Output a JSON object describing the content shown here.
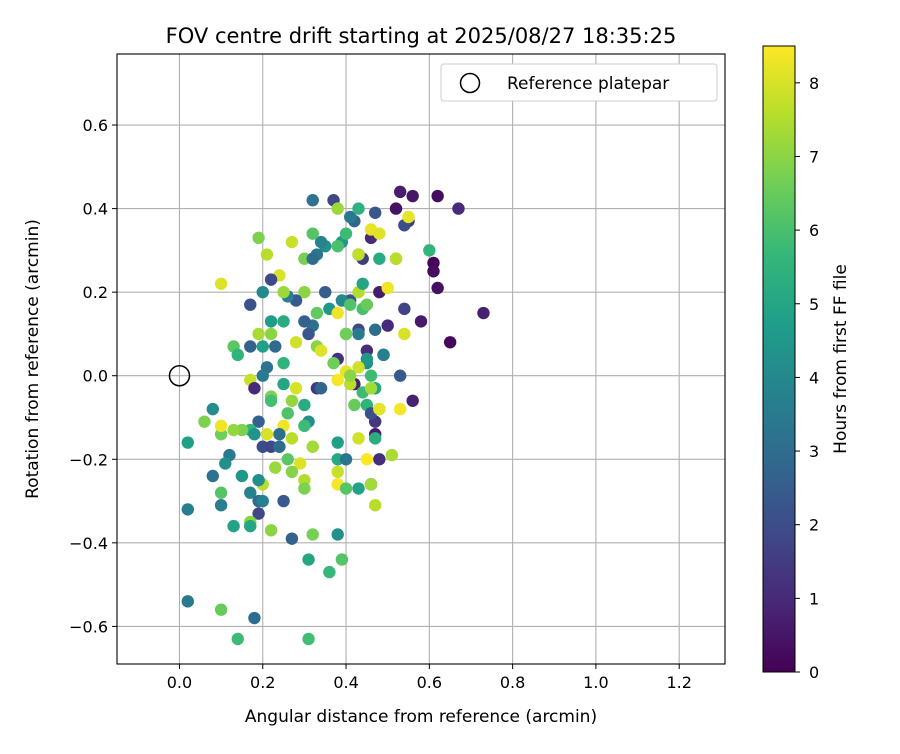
{
  "chart_data": {
    "type": "scatter",
    "title": "FOV centre drift starting at 2025/08/27 18:35:25",
    "xlabel": "Angular distance from reference (arcmin)",
    "ylabel": "Rotation from reference (arcmin)",
    "xlim": [
      -0.15,
      1.31
    ],
    "ylim": [
      -0.69,
      0.77
    ],
    "grid": true,
    "legend": {
      "position": "top-right",
      "entries": [
        "Reference platepar"
      ]
    },
    "x_ticks": [
      0.0,
      0.2,
      0.4,
      0.6,
      0.8,
      1.0,
      1.2
    ],
    "x_tick_labels": [
      "0.0",
      "0.2",
      "0.4",
      "0.6",
      "0.8",
      "1.0",
      "1.2"
    ],
    "y_ticks": [
      -0.6,
      -0.4,
      -0.2,
      0.0,
      0.2,
      0.4,
      0.6
    ],
    "y_tick_labels": [
      "−0.6",
      "−0.4",
      "−0.2",
      "0.0",
      "0.2",
      "0.4",
      "0.6"
    ],
    "colorbar": {
      "label": "Hours from first FF file",
      "colormap": "viridis",
      "range": [
        0,
        8.5
      ],
      "ticks": [
        0,
        1,
        2,
        3,
        4,
        5,
        6,
        7,
        8
      ],
      "tick_labels": [
        "0",
        "1",
        "2",
        "3",
        "4",
        "5",
        "6",
        "7",
        "8"
      ]
    },
    "reference_point": {
      "name": "Reference platepar",
      "x": 0.0,
      "y": 0.0
    },
    "points": [
      {
        "x": 0.53,
        "y": 0.44,
        "h": 0.7
      },
      {
        "x": 0.56,
        "y": 0.43,
        "h": 0.5
      },
      {
        "x": 0.62,
        "y": 0.43,
        "h": 0.3
      },
      {
        "x": 0.67,
        "y": 0.4,
        "h": 1.0
      },
      {
        "x": 0.61,
        "y": 0.27,
        "h": 0.1
      },
      {
        "x": 0.61,
        "y": 0.25,
        "h": 0.3
      },
      {
        "x": 0.62,
        "y": 0.21,
        "h": 0.4
      },
      {
        "x": 0.73,
        "y": 0.15,
        "h": 0.8
      },
      {
        "x": 0.58,
        "y": 0.13,
        "h": 0.6
      },
      {
        "x": 0.65,
        "y": 0.08,
        "h": 0.2
      },
      {
        "x": 0.56,
        "y": -0.06,
        "h": 0.8
      },
      {
        "x": 0.55,
        "y": 0.37,
        "h": 1.5
      },
      {
        "x": 0.54,
        "y": 0.36,
        "h": 2.0
      },
      {
        "x": 0.54,
        "y": 0.16,
        "h": 1.7
      },
      {
        "x": 0.52,
        "y": 0.4,
        "h": 0.4
      },
      {
        "x": 0.5,
        "y": 0.12,
        "h": 1.0
      },
      {
        "x": 0.48,
        "y": 0.2,
        "h": 0.6
      },
      {
        "x": 0.47,
        "y": 0.39,
        "h": 2.3
      },
      {
        "x": 0.46,
        "y": 0.33,
        "h": 1.0
      },
      {
        "x": 0.45,
        "y": 0.06,
        "h": 1.1
      },
      {
        "x": 0.47,
        "y": -0.14,
        "h": 0.6
      },
      {
        "x": 0.48,
        "y": -0.2,
        "h": 1.1
      },
      {
        "x": 0.46,
        "y": -0.26,
        "h": 1.2
      },
      {
        "x": 0.47,
        "y": -0.11,
        "h": 1.4
      },
      {
        "x": 0.42,
        "y": -0.02,
        "h": 0.8
      },
      {
        "x": 0.38,
        "y": 0.04,
        "h": 1.2
      },
      {
        "x": 0.43,
        "y": 0.29,
        "h": 2.5
      },
      {
        "x": 0.42,
        "y": 0.37,
        "h": 2.8
      },
      {
        "x": 0.41,
        "y": 0.38,
        "h": 3.5
      },
      {
        "x": 0.37,
        "y": 0.42,
        "h": 1.8
      },
      {
        "x": 0.32,
        "y": 0.42,
        "h": 3.2
      },
      {
        "x": 0.44,
        "y": 0.28,
        "h": 1.5
      },
      {
        "x": 0.41,
        "y": 0.18,
        "h": 2.2
      },
      {
        "x": 0.43,
        "y": 0.11,
        "h": 1.8
      },
      {
        "x": 0.47,
        "y": 0.11,
        "h": 3.0
      },
      {
        "x": 0.49,
        "y": 0.05,
        "h": 3.8
      },
      {
        "x": 0.53,
        "y": 0.0,
        "h": 2.4
      },
      {
        "x": 0.45,
        "y": 0.03,
        "h": 4.2
      },
      {
        "x": 0.47,
        "y": -0.03,
        "h": 5.0
      },
      {
        "x": 0.45,
        "y": -0.07,
        "h": 5.5
      },
      {
        "x": 0.46,
        "y": -0.09,
        "h": 2.1
      },
      {
        "x": 0.48,
        "y": -0.08,
        "h": 4.6
      },
      {
        "x": 0.43,
        "y": 0.1,
        "h": 3.5
      },
      {
        "x": 0.4,
        "y": 0.1,
        "h": 6.5
      },
      {
        "x": 0.39,
        "y": 0.18,
        "h": 4.0
      },
      {
        "x": 0.35,
        "y": 0.31,
        "h": 4.3
      },
      {
        "x": 0.34,
        "y": 0.32,
        "h": 3.8
      },
      {
        "x": 0.33,
        "y": 0.29,
        "h": 3.3
      },
      {
        "x": 0.39,
        "y": 0.32,
        "h": 4.6
      },
      {
        "x": 0.38,
        "y": 0.31,
        "h": 6.0
      },
      {
        "x": 0.3,
        "y": 0.28,
        "h": 6.7
      },
      {
        "x": 0.32,
        "y": 0.34,
        "h": 6.2
      },
      {
        "x": 0.36,
        "y": 0.16,
        "h": 4.5
      },
      {
        "x": 0.3,
        "y": 0.2,
        "h": 7.0
      },
      {
        "x": 0.33,
        "y": 0.15,
        "h": 6.4
      },
      {
        "x": 0.32,
        "y": 0.12,
        "h": 3.1
      },
      {
        "x": 0.3,
        "y": 0.13,
        "h": 2.6
      },
      {
        "x": 0.28,
        "y": 0.18,
        "h": 2.4
      },
      {
        "x": 0.26,
        "y": 0.19,
        "h": 3.6
      },
      {
        "x": 0.25,
        "y": 0.2,
        "h": 7.2
      },
      {
        "x": 0.24,
        "y": 0.24,
        "h": 8.0
      },
      {
        "x": 0.22,
        "y": 0.23,
        "h": 1.9
      },
      {
        "x": 0.21,
        "y": 0.29,
        "h": 7.6
      },
      {
        "x": 0.19,
        "y": 0.33,
        "h": 6.8
      },
      {
        "x": 0.27,
        "y": 0.32,
        "h": 7.8
      },
      {
        "x": 0.2,
        "y": 0.2,
        "h": 4.0
      },
      {
        "x": 0.17,
        "y": 0.17,
        "h": 2.2
      },
      {
        "x": 0.22,
        "y": 0.13,
        "h": 4.7
      },
      {
        "x": 0.25,
        "y": 0.13,
        "h": 5.2
      },
      {
        "x": 0.19,
        "y": 0.1,
        "h": 7.4
      },
      {
        "x": 0.22,
        "y": 0.1,
        "h": 7.0
      },
      {
        "x": 0.23,
        "y": 0.07,
        "h": 2.9
      },
      {
        "x": 0.2,
        "y": 0.07,
        "h": 4.8
      },
      {
        "x": 0.17,
        "y": 0.07,
        "h": 2.6
      },
      {
        "x": 0.13,
        "y": 0.07,
        "h": 6.3
      },
      {
        "x": 0.14,
        "y": 0.05,
        "h": 5.5
      },
      {
        "x": 0.28,
        "y": 0.08,
        "h": 7.9
      },
      {
        "x": 0.31,
        "y": 0.1,
        "h": 2.3
      },
      {
        "x": 0.33,
        "y": 0.07,
        "h": 7.0
      },
      {
        "x": 0.34,
        "y": 0.06,
        "h": 8.1
      },
      {
        "x": 0.37,
        "y": 0.03,
        "h": 6.6
      },
      {
        "x": 0.38,
        "y": -0.01,
        "h": 8.4
      },
      {
        "x": 0.4,
        "y": 0.01,
        "h": 8.2
      },
      {
        "x": 0.41,
        "y": -0.02,
        "h": 7.6
      },
      {
        "x": 0.42,
        "y": -0.07,
        "h": 6.5
      },
      {
        "x": 0.44,
        "y": -0.04,
        "h": 5.8
      },
      {
        "x": 0.46,
        "y": -0.03,
        "h": 7.3
      },
      {
        "x": 0.1,
        "y": 0.22,
        "h": 8.1
      },
      {
        "x": 0.17,
        "y": -0.01,
        "h": 7.8
      },
      {
        "x": 0.18,
        "y": -0.03,
        "h": 1.0
      },
      {
        "x": 0.21,
        "y": 0.02,
        "h": 3.2
      },
      {
        "x": 0.2,
        "y": 0.0,
        "h": 3.5
      },
      {
        "x": 0.25,
        "y": 0.03,
        "h": 5.5
      },
      {
        "x": 0.25,
        "y": -0.02,
        "h": 5.0
      },
      {
        "x": 0.28,
        "y": -0.03,
        "h": 8.0
      },
      {
        "x": 0.3,
        "y": -0.07,
        "h": 5.2
      },
      {
        "x": 0.33,
        "y": -0.03,
        "h": 1.4
      },
      {
        "x": 0.34,
        "y": -0.03,
        "h": 2.8
      },
      {
        "x": 0.31,
        "y": -0.11,
        "h": 4.2
      },
      {
        "x": 0.3,
        "y": -0.12,
        "h": 5.8
      },
      {
        "x": 0.26,
        "y": -0.09,
        "h": 6.1
      },
      {
        "x": 0.27,
        "y": -0.06,
        "h": 7.1
      },
      {
        "x": 0.22,
        "y": -0.05,
        "h": 6.8
      },
      {
        "x": 0.22,
        "y": -0.06,
        "h": 5.9
      },
      {
        "x": 0.25,
        "y": -0.12,
        "h": 8.3
      },
      {
        "x": 0.24,
        "y": -0.14,
        "h": 3.1
      },
      {
        "x": 0.27,
        "y": -0.15,
        "h": 7.6
      },
      {
        "x": 0.21,
        "y": -0.14,
        "h": 8.0
      },
      {
        "x": 0.19,
        "y": -0.11,
        "h": 2.6
      },
      {
        "x": 0.17,
        "y": -0.13,
        "h": 5.6
      },
      {
        "x": 0.15,
        "y": -0.13,
        "h": 6.8
      },
      {
        "x": 0.13,
        "y": -0.13,
        "h": 7.1
      },
      {
        "x": 0.18,
        "y": -0.14,
        "h": 4.4
      },
      {
        "x": 0.2,
        "y": -0.17,
        "h": 2.0
      },
      {
        "x": 0.22,
        "y": -0.17,
        "h": 1.8
      },
      {
        "x": 0.24,
        "y": -0.17,
        "h": 3.0
      },
      {
        "x": 0.23,
        "y": -0.22,
        "h": 7.2
      },
      {
        "x": 0.26,
        "y": -0.2,
        "h": 6.3
      },
      {
        "x": 0.29,
        "y": -0.21,
        "h": 8.1
      },
      {
        "x": 0.27,
        "y": -0.23,
        "h": 6.9
      },
      {
        "x": 0.3,
        "y": -0.25,
        "h": 7.5
      },
      {
        "x": 0.3,
        "y": -0.27,
        "h": 6.8
      },
      {
        "x": 0.32,
        "y": -0.17,
        "h": 7.3
      },
      {
        "x": 0.2,
        "y": -0.26,
        "h": 7.6
      },
      {
        "x": 0.19,
        "y": -0.25,
        "h": 4.2
      },
      {
        "x": 0.17,
        "y": -0.28,
        "h": 3.8
      },
      {
        "x": 0.19,
        "y": -0.3,
        "h": 2.9
      },
      {
        "x": 0.2,
        "y": -0.3,
        "h": 3.7
      },
      {
        "x": 0.19,
        "y": -0.33,
        "h": 1.8
      },
      {
        "x": 0.17,
        "y": -0.35,
        "h": 7.0
      },
      {
        "x": 0.17,
        "y": -0.36,
        "h": 5.0
      },
      {
        "x": 0.15,
        "y": -0.24,
        "h": 4.5
      },
      {
        "x": 0.12,
        "y": -0.19,
        "h": 3.5
      },
      {
        "x": 0.11,
        "y": -0.21,
        "h": 4.3
      },
      {
        "x": 0.1,
        "y": -0.14,
        "h": 6.6
      },
      {
        "x": 0.1,
        "y": -0.12,
        "h": 8.3
      },
      {
        "x": 0.06,
        "y": -0.11,
        "h": 6.8
      },
      {
        "x": 0.08,
        "y": -0.08,
        "h": 4.1
      },
      {
        "x": 0.02,
        "y": -0.16,
        "h": 4.8
      },
      {
        "x": 0.08,
        "y": -0.24,
        "h": 3.2
      },
      {
        "x": 0.1,
        "y": -0.28,
        "h": 6.2
      },
      {
        "x": 0.1,
        "y": -0.31,
        "h": 3.6
      },
      {
        "x": 0.13,
        "y": -0.36,
        "h": 4.9
      },
      {
        "x": 0.02,
        "y": -0.32,
        "h": 3.6
      },
      {
        "x": 0.25,
        "y": -0.3,
        "h": 2.4
      },
      {
        "x": 0.27,
        "y": -0.39,
        "h": 2.6
      },
      {
        "x": 0.22,
        "y": -0.37,
        "h": 7.0
      },
      {
        "x": 0.32,
        "y": -0.38,
        "h": 6.7
      },
      {
        "x": 0.38,
        "y": -0.38,
        "h": 4.3
      },
      {
        "x": 0.31,
        "y": -0.44,
        "h": 5.0
      },
      {
        "x": 0.36,
        "y": -0.47,
        "h": 5.7
      },
      {
        "x": 0.39,
        "y": -0.44,
        "h": 6.2
      },
      {
        "x": 0.02,
        "y": -0.54,
        "h": 3.5
      },
      {
        "x": 0.1,
        "y": -0.56,
        "h": 6.5
      },
      {
        "x": 0.14,
        "y": -0.63,
        "h": 5.8
      },
      {
        "x": 0.18,
        "y": -0.58,
        "h": 3.0
      },
      {
        "x": 0.31,
        "y": -0.63,
        "h": 5.9
      },
      {
        "x": 0.38,
        "y": -0.16,
        "h": 4.8
      },
      {
        "x": 0.38,
        "y": -0.2,
        "h": 5.1
      },
      {
        "x": 0.4,
        "y": -0.2,
        "h": 3.3
      },
      {
        "x": 0.38,
        "y": -0.23,
        "h": 7.8
      },
      {
        "x": 0.38,
        "y": -0.26,
        "h": 8.4
      },
      {
        "x": 0.4,
        "y": -0.27,
        "h": 6.2
      },
      {
        "x": 0.43,
        "y": -0.27,
        "h": 4.9
      },
      {
        "x": 0.46,
        "y": -0.26,
        "h": 7.3
      },
      {
        "x": 0.47,
        "y": -0.31,
        "h": 7.6
      },
      {
        "x": 0.43,
        "y": -0.15,
        "h": 7.9
      },
      {
        "x": 0.45,
        "y": -0.2,
        "h": 8.5
      },
      {
        "x": 0.51,
        "y": -0.19,
        "h": 7.4
      },
      {
        "x": 0.47,
        "y": -0.15,
        "h": 5.3
      },
      {
        "x": 0.48,
        "y": -0.08,
        "h": 8.2
      },
      {
        "x": 0.53,
        "y": -0.08,
        "h": 8.4
      },
      {
        "x": 0.49,
        "y": 0.05,
        "h": 3.7
      },
      {
        "x": 0.45,
        "y": 0.04,
        "h": 4.5
      },
      {
        "x": 0.46,
        "y": 0.0,
        "h": 5.8
      },
      {
        "x": 0.43,
        "y": 0.02,
        "h": 7.9
      },
      {
        "x": 0.41,
        "y": 0.0,
        "h": 7.0
      },
      {
        "x": 0.4,
        "y": 0.1,
        "h": 6.6
      },
      {
        "x": 0.38,
        "y": 0.15,
        "h": 8.3
      },
      {
        "x": 0.41,
        "y": 0.17,
        "h": 6.1
      },
      {
        "x": 0.43,
        "y": 0.2,
        "h": 7.5
      },
      {
        "x": 0.44,
        "y": 0.16,
        "h": 6.0
      },
      {
        "x": 0.45,
        "y": 0.17,
        "h": 6.5
      },
      {
        "x": 0.44,
        "y": 0.22,
        "h": 5.0
      },
      {
        "x": 0.43,
        "y": 0.29,
        "h": 7.7
      },
      {
        "x": 0.46,
        "y": 0.35,
        "h": 8.2
      },
      {
        "x": 0.48,
        "y": 0.34,
        "h": 8.1
      },
      {
        "x": 0.48,
        "y": 0.28,
        "h": 5.2
      },
      {
        "x": 0.52,
        "y": 0.28,
        "h": 7.0
      },
      {
        "x": 0.52,
        "y": 0.28,
        "h": 7.6
      },
      {
        "x": 0.5,
        "y": 0.21,
        "h": 8.3
      },
      {
        "x": 0.54,
        "y": 0.1,
        "h": 8.0
      },
      {
        "x": 0.55,
        "y": 0.38,
        "h": 8.2
      },
      {
        "x": 0.6,
        "y": 0.3,
        "h": 5.6
      },
      {
        "x": 0.38,
        "y": 0.4,
        "h": 7.2
      },
      {
        "x": 0.43,
        "y": 0.4,
        "h": 5.4
      },
      {
        "x": 0.4,
        "y": 0.34,
        "h": 5.8
      },
      {
        "x": 0.32,
        "y": 0.28,
        "h": 3.0
      },
      {
        "x": 0.35,
        "y": 0.2,
        "h": 2.5
      }
    ]
  }
}
